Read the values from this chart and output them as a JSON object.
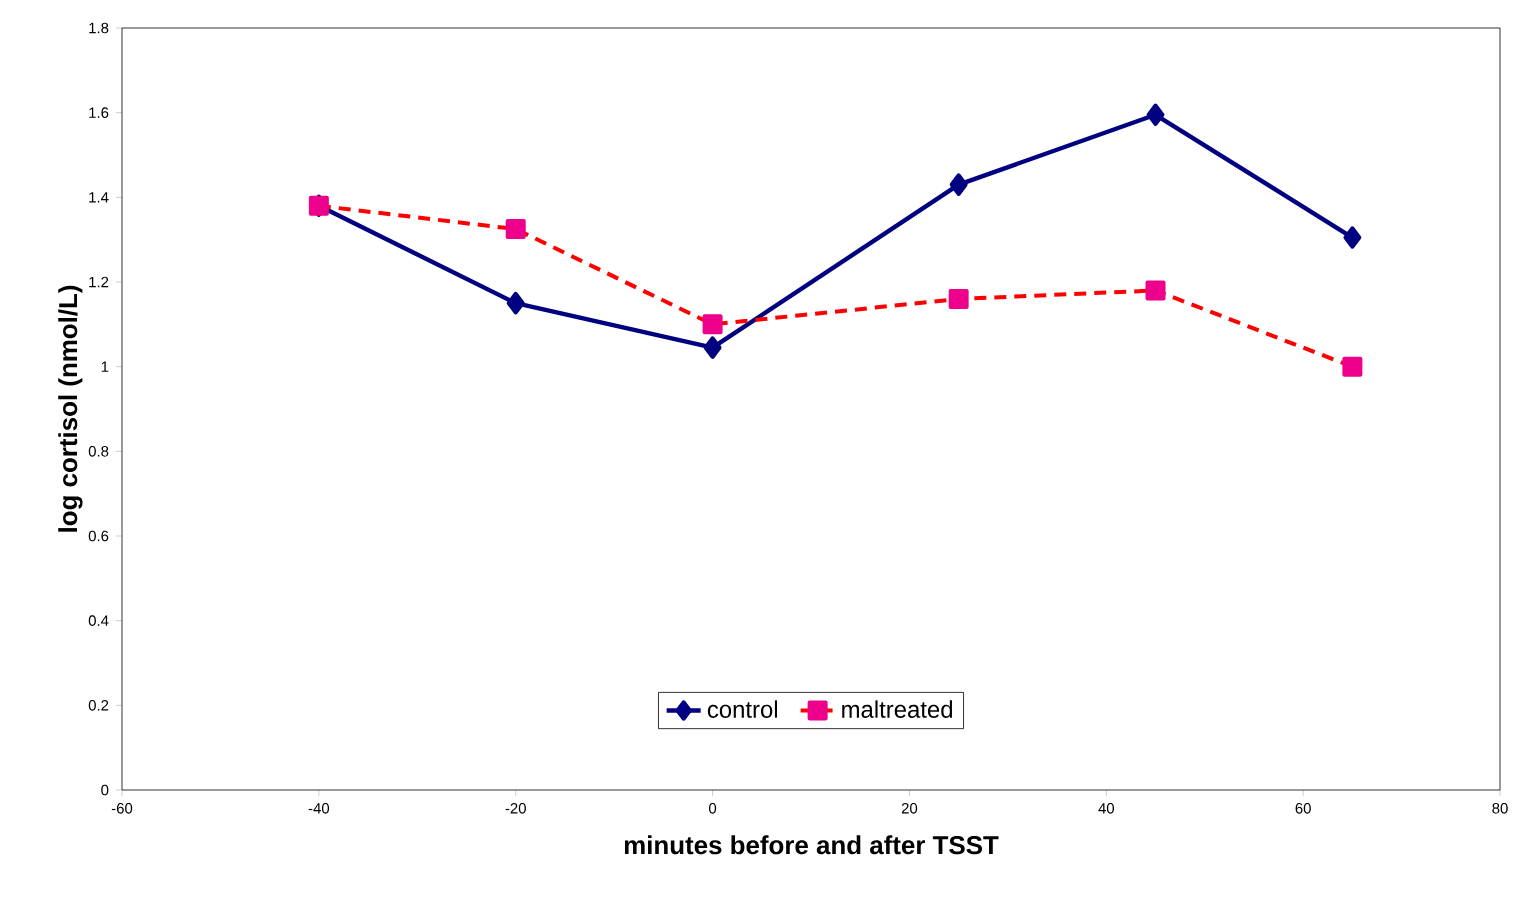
{
  "chart_data": {
    "type": "line",
    "xlabel": "minutes before and after TSST",
    "ylabel": "log cortisol (nmol/L)",
    "x": [
      -40,
      -20,
      0,
      25,
      45,
      65
    ],
    "series": [
      {
        "name": "control",
        "color": "#000080",
        "marker": "diamond",
        "line_style": "solid",
        "values": [
          1.38,
          1.15,
          1.045,
          1.43,
          1.595,
          1.305
        ]
      },
      {
        "name": "maltreated",
        "color": "#ff0000",
        "marker": "square",
        "line_style": "dashed",
        "values": [
          1.38,
          1.325,
          1.1,
          1.16,
          1.18,
          1.0
        ]
      }
    ],
    "xlim": [
      -60,
      80
    ],
    "xticks": [
      -60,
      -40,
      -20,
      0,
      20,
      40,
      60,
      80
    ],
    "ylim": [
      0,
      1.8
    ],
    "yticks": [
      0,
      0.2,
      0.4,
      0.6,
      0.8,
      1,
      1.2,
      1.4,
      1.6,
      1.8
    ],
    "grid": false,
    "legend": "bottom"
  }
}
